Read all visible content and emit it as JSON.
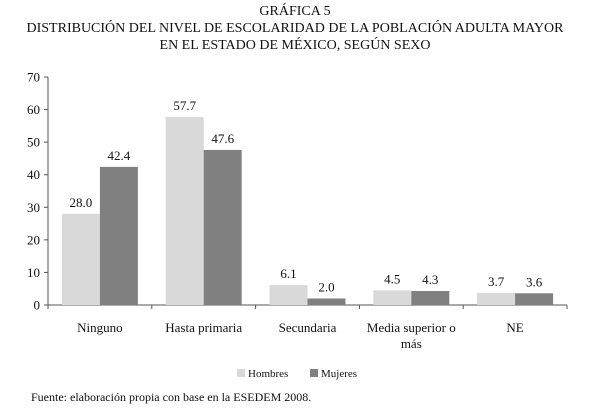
{
  "header": {
    "label": "GRÁFICA 5",
    "title_line1": "DISTRIBUCIÓN DEL NIVEL DE ESCOLARIDAD DE LA POBLACIÓN ADULTA MAYOR",
    "title_line2": "EN EL ESTADO DE MÉXICO, SEGÚN SEXO"
  },
  "footer": {
    "source": "Fuente: elaboración propia con base en la ESEDEM 2008."
  },
  "chart_data": {
    "type": "bar",
    "title": "DISTRIBUCIÓN DEL NIVEL DE ESCOLARIDAD DE LA POBLACIÓN ADULTA MAYOR EN EL ESTADO DE MÉXICO, SEGÚN SEXO",
    "categories": [
      "Ninguno",
      "Hasta primaria",
      "Secundaria",
      "Media superior o más",
      "NE"
    ],
    "category_lines": [
      [
        "Ninguno"
      ],
      [
        "Hasta primaria"
      ],
      [
        "Secundaria"
      ],
      [
        "Media superior o",
        "más"
      ],
      [
        "NE"
      ]
    ],
    "series": [
      {
        "name": "Hombres",
        "values": [
          28.0,
          57.7,
          6.1,
          4.5,
          3.7
        ],
        "color": "#d9d9d9"
      },
      {
        "name": "Mujeres",
        "values": [
          42.4,
          47.6,
          2.0,
          4.3,
          3.6
        ],
        "color": "#808080"
      }
    ],
    "ylim": [
      0,
      70
    ],
    "yticks": [
      0,
      10,
      20,
      30,
      40,
      50,
      60,
      70
    ],
    "grid": false,
    "legend": "bottom-center",
    "data_labels": true
  }
}
